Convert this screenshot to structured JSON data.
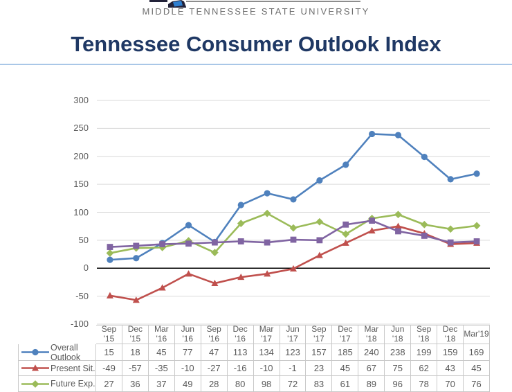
{
  "logo": {
    "university": "MIDDLE TENNESSEE STATE UNIVERSITY"
  },
  "page_title": "Tennessee Consumer Outlook Index",
  "colors": {
    "title": "#1F3864",
    "title_rule": "#A9C7E7",
    "gridline": "#D9D9D9",
    "zero_line": "#000000",
    "axis_text": "#595959",
    "table_border": "#C9C9C9",
    "logo_text": "#6E6E6E",
    "series_blue": "#4F81BD",
    "series_red": "#C0504D",
    "series_green": "#9BBB59",
    "series_purple": "#8064A2"
  },
  "chart_data": {
    "type": "line",
    "title": "Tennessee Consumer Outlook Index",
    "xlabel": "",
    "ylabel": "",
    "ylim": [
      -100,
      300
    ],
    "y_tick_step": 50,
    "y_ticks": [
      300,
      250,
      200,
      150,
      100,
      50,
      0,
      -50,
      -100
    ],
    "grid": true,
    "legend_position": "left-of-data-table",
    "categories": [
      "Sep '15",
      "Dec '15",
      "Mar '16",
      "Jun '16",
      "Sep '16",
      "Dec '16",
      "Mar '17",
      "Jun '17",
      "Sep '17",
      "Dec '17",
      "Mar '18",
      "Jun '18",
      "Sep '18",
      "Dec '18",
      "Mar'19"
    ],
    "series": [
      {
        "name": "Overall Outlook",
        "color": "#4F81BD",
        "marker": "circle",
        "values": [
          15,
          18,
          45,
          77,
          47,
          113,
          134,
          123,
          157,
          185,
          240,
          238,
          199,
          159,
          169
        ]
      },
      {
        "name": "Present Sit.",
        "color": "#C0504D",
        "marker": "triangle",
        "values": [
          -49,
          -57,
          -35,
          -10,
          -27,
          -16,
          -10,
          -1,
          23,
          45,
          67,
          75,
          62,
          43,
          45
        ]
      },
      {
        "name": "Future Exp.",
        "color": "#9BBB59",
        "marker": "diamond",
        "values": [
          27,
          36,
          37,
          49,
          28,
          80,
          98,
          72,
          83,
          61,
          89,
          96,
          78,
          70,
          76
        ]
      },
      {
        "name": "",
        "label_visible": false,
        "color": "#8064A2",
        "marker": "square",
        "note": "fourth series drawn in plot; its legend/table row is cut off at the bottom edge of the screenshot; values estimated from pixels",
        "values": [
          38,
          40,
          43,
          44,
          46,
          48,
          46,
          51,
          50,
          78,
          85,
          66,
          58,
          46,
          48
        ]
      }
    ]
  },
  "table": {
    "column_headers": [
      "Sep '15",
      "Dec '15",
      "Mar\n'16",
      "Jun '16",
      "Sep '16",
      "Dec '16",
      "Mar\n'17",
      "Jun '17",
      "Sep '17",
      "Dec '17",
      "Mar\n'18",
      "Jun '18",
      "Sep '18",
      "Dec '18",
      "Mar'19"
    ],
    "rows": [
      {
        "label": "Overall Outlook",
        "marker": "circle",
        "color": "#4F81BD",
        "values": [
          "15",
          "18",
          "45",
          "77",
          "47",
          "113",
          "134",
          "123",
          "157",
          "185",
          "240",
          "238",
          "199",
          "159",
          "169"
        ]
      },
      {
        "label": "Present Sit.",
        "marker": "triangle",
        "color": "#C0504D",
        "values": [
          "-49",
          "-57",
          "-35",
          "-10",
          "-27",
          "-16",
          "-10",
          "-1",
          "23",
          "45",
          "67",
          "75",
          "62",
          "43",
          "45"
        ]
      },
      {
        "label": "Future Exp.",
        "marker": "diamond",
        "color": "#9BBB59",
        "values": [
          "27",
          "36",
          "37",
          "49",
          "28",
          "80",
          "98",
          "72",
          "83",
          "61",
          "89",
          "96",
          "78",
          "70",
          "76"
        ]
      }
    ]
  }
}
